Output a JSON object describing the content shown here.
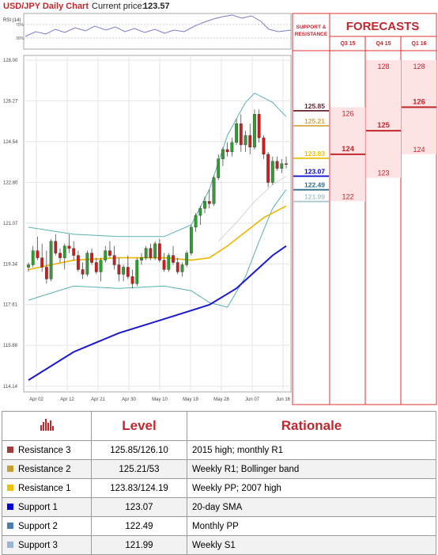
{
  "header": {
    "title": "USD/JPY Daily Chart",
    "price_label": "Current price:",
    "price_value": "123.57"
  },
  "rsi": {
    "label": "RSI (14)",
    "tick_top": "70%",
    "tick_bottom": "30%"
  },
  "colors": {
    "accent": "#c0272d",
    "forecast_bg": "#fde3e3",
    "r3": "#6b1e2e",
    "r2": "#d4a843",
    "r1": "#f0c000",
    "s1": "#0000cc",
    "s2": "#2e6f8e",
    "s3": "#a8c8cc",
    "sma200": "#1a1acc",
    "sma50": "#f0b400",
    "bollinger": "#5ab0b0",
    "candle_up": "#2ea02e",
    "candle_down": "#d01c1c"
  },
  "forecast_panel": {
    "support_label": "SUPPORT & RESISTANCE",
    "title": "FORECASTS",
    "quarters": [
      "Q3 15",
      "Q4 15",
      "Q1 16"
    ],
    "levels": [
      {
        "value": "125.85",
        "color": "#6b1e2e",
        "price": 125.85
      },
      {
        "value": "125.21",
        "color": "#d4a843",
        "price": 125.21
      },
      {
        "value": "123.83",
        "color": "#f0c000",
        "price": 123.83
      },
      {
        "value": "123.07",
        "color": "#0000cc",
        "price": 123.07
      },
      {
        "value": "122.49",
        "color": "#2e6f8e",
        "price": 122.49
      },
      {
        "value": "121.99",
        "color": "#a8c8cc",
        "price": 121.99
      }
    ],
    "forecasts": [
      {
        "quarter": "Q3 15",
        "high": "126",
        "mid": "124",
        "low": "122",
        "high_price": 126,
        "mid_price": 124,
        "low_price": 122
      },
      {
        "quarter": "Q4 15",
        "high": "128",
        "mid": "125",
        "low": "123",
        "high_price": 128,
        "mid_price": 125,
        "low_price": 123
      },
      {
        "quarter": "Q1 16",
        "high": "128",
        "mid": "126",
        "low": "124",
        "high_price": 128,
        "mid_price": 126,
        "low_price": 124
      }
    ]
  },
  "chart_data": {
    "type": "candlestick",
    "title": "USD/JPY Daily Chart",
    "y_ticks": [
      "128.00",
      "126.27",
      "124.54",
      "122.80",
      "121.07",
      "119.34",
      "117.61",
      "115.88",
      "114.14"
    ],
    "ylim": [
      113.9,
      128.2
    ],
    "x_ticks": [
      "Apr 02",
      "Apr 12",
      "Apr 21",
      "Apr 30",
      "May 10",
      "May 19",
      "May 28",
      "Jun 07",
      "Jun 16"
    ],
    "grid": true,
    "candles": [
      [
        119.2,
        119.4,
        119.0,
        119.3
      ],
      [
        119.3,
        120.1,
        119.2,
        119.9
      ],
      [
        119.9,
        120.5,
        119.5,
        119.6
      ],
      [
        119.6,
        120.2,
        119.0,
        119.2
      ],
      [
        119.2,
        119.9,
        118.5,
        118.7
      ],
      [
        118.7,
        120.4,
        118.6,
        120.3
      ],
      [
        120.3,
        120.6,
        119.7,
        119.8
      ],
      [
        119.8,
        120.0,
        119.4,
        119.6
      ],
      [
        119.6,
        120.2,
        119.1,
        120.1
      ],
      [
        120.1,
        120.6,
        119.8,
        120.0
      ],
      [
        120.0,
        120.3,
        119.5,
        119.7
      ],
      [
        119.7,
        119.9,
        119.0,
        119.1
      ],
      [
        119.1,
        119.4,
        118.7,
        118.9
      ],
      [
        118.9,
        119.9,
        118.8,
        119.8
      ],
      [
        119.8,
        120.0,
        119.3,
        119.4
      ],
      [
        119.4,
        119.6,
        118.9,
        119.0
      ],
      [
        119.0,
        119.6,
        118.6,
        119.5
      ],
      [
        119.5,
        120.1,
        119.4,
        119.9
      ],
      [
        119.9,
        120.3,
        119.6,
        119.7
      ],
      [
        119.7,
        120.1,
        119.1,
        119.3
      ],
      [
        119.3,
        119.6,
        118.6,
        118.9
      ],
      [
        118.9,
        119.3,
        118.6,
        119.2
      ],
      [
        119.2,
        119.7,
        118.7,
        118.8
      ],
      [
        118.8,
        119.1,
        118.3,
        118.5
      ],
      [
        118.5,
        119.6,
        118.4,
        119.5
      ],
      [
        119.5,
        119.8,
        119.3,
        119.6
      ],
      [
        119.6,
        120.1,
        119.5,
        120.0
      ],
      [
        120.0,
        120.2,
        119.5,
        119.6
      ],
      [
        119.6,
        120.3,
        119.5,
        120.2
      ],
      [
        120.2,
        120.4,
        119.4,
        119.5
      ],
      [
        119.5,
        119.8,
        119.0,
        119.1
      ],
      [
        119.1,
        119.8,
        119.0,
        119.7
      ],
      [
        119.7,
        120.1,
        119.3,
        119.4
      ],
      [
        119.4,
        119.6,
        118.9,
        119.0
      ],
      [
        119.0,
        119.4,
        118.8,
        119.3
      ],
      [
        119.3,
        119.9,
        119.2,
        119.8
      ],
      [
        119.8,
        121.0,
        119.7,
        120.9
      ],
      [
        120.9,
        121.5,
        120.7,
        121.4
      ],
      [
        121.4,
        121.8,
        121.0,
        121.7
      ],
      [
        121.7,
        122.2,
        121.5,
        122.0
      ],
      [
        122.0,
        122.5,
        121.7,
        121.9
      ],
      [
        121.9,
        123.1,
        121.8,
        123.0
      ],
      [
        123.0,
        124.0,
        122.9,
        123.8
      ],
      [
        123.8,
        124.3,
        123.5,
        124.2
      ],
      [
        124.2,
        124.5,
        123.9,
        124.1
      ],
      [
        124.1,
        124.7,
        123.9,
        124.5
      ],
      [
        124.5,
        125.5,
        124.4,
        125.3
      ],
      [
        125.3,
        125.7,
        124.1,
        124.4
      ],
      [
        124.4,
        125.0,
        124.1,
        124.8
      ],
      [
        124.8,
        125.3,
        124.0,
        124.3
      ],
      [
        124.3,
        125.9,
        124.2,
        125.7
      ],
      [
        125.7,
        125.9,
        124.5,
        124.7
      ],
      [
        124.7,
        124.8,
        123.8,
        124.0
      ],
      [
        124.0,
        124.1,
        122.6,
        122.8
      ],
      [
        122.8,
        123.9,
        122.7,
        123.7
      ],
      [
        123.7,
        123.9,
        123.3,
        123.4
      ],
      [
        123.4,
        123.8,
        123.2,
        123.6
      ],
      [
        123.6,
        123.9,
        123.4,
        123.57
      ]
    ],
    "bollinger_upper": [
      [
        0,
        120.9
      ],
      [
        10,
        120.6
      ],
      [
        20,
        120.5
      ],
      [
        30,
        120.5
      ],
      [
        36,
        121.0
      ],
      [
        40,
        122.5
      ],
      [
        44,
        124.8
      ],
      [
        48,
        126.2
      ],
      [
        50,
        126.6
      ],
      [
        54,
        126.2
      ],
      [
        57,
        125.6
      ]
    ],
    "bollinger_lower": [
      [
        0,
        117.8
      ],
      [
        10,
        118.4
      ],
      [
        20,
        118.3
      ],
      [
        30,
        118.4
      ],
      [
        36,
        118.2
      ],
      [
        40,
        117.7
      ],
      [
        44,
        117.5
      ],
      [
        48,
        118.8
      ],
      [
        51,
        120.3
      ],
      [
        54,
        121.7
      ],
      [
        57,
        122.5
      ]
    ],
    "sma_50": [
      [
        0,
        119.1
      ],
      [
        5,
        119.3
      ],
      [
        10,
        119.5
      ],
      [
        20,
        119.6
      ],
      [
        30,
        119.6
      ],
      [
        36,
        119.5
      ],
      [
        40,
        119.6
      ],
      [
        44,
        120.1
      ],
      [
        48,
        120.7
      ],
      [
        52,
        121.3
      ],
      [
        57,
        121.8
      ]
    ],
    "sma_200": [
      [
        0,
        114.4
      ],
      [
        10,
        115.6
      ],
      [
        20,
        116.4
      ],
      [
        30,
        117.0
      ],
      [
        40,
        117.6
      ],
      [
        46,
        118.3
      ],
      [
        50,
        119.0
      ],
      [
        54,
        119.7
      ],
      [
        57,
        120.1
      ]
    ],
    "sma_20": [
      [
        42,
        120.3
      ],
      [
        46,
        121.1
      ],
      [
        50,
        122.0
      ],
      [
        54,
        122.7
      ],
      [
        57,
        123.07
      ]
    ]
  },
  "table": {
    "headers": {
      "level": "Level",
      "rationale": "Rationale"
    },
    "rows": [
      {
        "name": "Resistance 3",
        "level": "125.85/126.10",
        "rationale": "2015 high; monthly R1",
        "color": "#a83a3a"
      },
      {
        "name": "Resistance 2",
        "level": "125.21/53",
        "rationale": "Weekly R1; Bollinger band",
        "color": "#c8a030"
      },
      {
        "name": "Resistance 1",
        "level": "123.83/124.19",
        "rationale": "Weekly PP; 2007 high",
        "color": "#f0c000"
      },
      {
        "name": "Support 1",
        "level": "123.07",
        "rationale": "20-day SMA",
        "color": "#0000cc"
      },
      {
        "name": "Support 2",
        "level": "122.49",
        "rationale": "Monthly PP",
        "color": "#4a7fb5"
      },
      {
        "name": "Support 3",
        "level": "121.99",
        "rationale": "Weekly S1",
        "color": "#9ab4d4"
      }
    ]
  }
}
